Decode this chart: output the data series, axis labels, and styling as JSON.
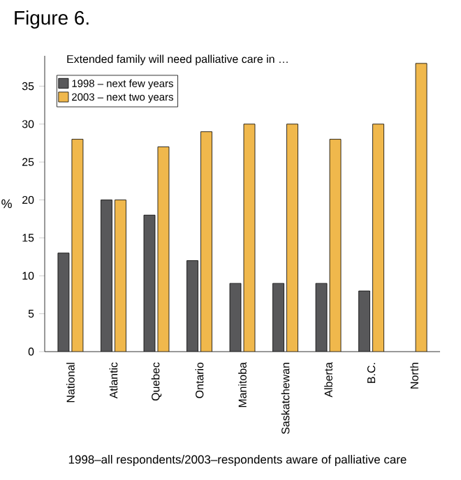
{
  "chart_data": {
    "type": "bar",
    "title": "Figure 6.",
    "subtitle": "Extended family will need palliative care in …",
    "ylabel": "%",
    "annotations": [
      "1998–all respondents/2003–respondents aware of palliative care"
    ],
    "categories": [
      "National",
      "Atlantic",
      "Quebec",
      "Ontario",
      "Manitoba",
      "Saskatchewan",
      "Alberta",
      "B.C.",
      "North"
    ],
    "series": [
      {
        "name": "1998 – next few years",
        "color": "#58585a",
        "values": [
          13,
          20,
          18,
          12,
          9,
          9,
          9,
          8,
          null
        ]
      },
      {
        "name": "2003 – next two years",
        "color": "#f0b84c",
        "values": [
          28,
          20,
          27,
          29,
          30,
          30,
          28,
          30,
          38
        ]
      }
    ],
    "ylim": [
      0,
      39
    ],
    "yticks": [
      0,
      5,
      10,
      15,
      20,
      25,
      30,
      35
    ],
    "legend": "top left"
  }
}
